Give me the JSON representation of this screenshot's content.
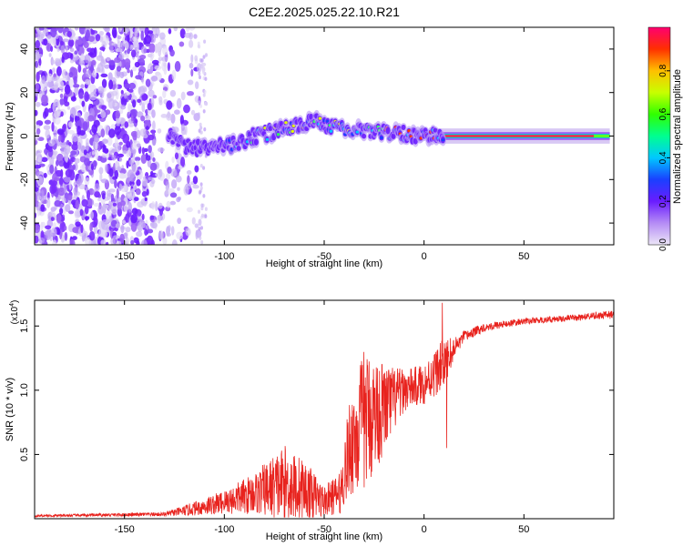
{
  "title": "C2E2.2025.025.22.10.R21",
  "chart_data": [
    {
      "type": "heatmap",
      "xlabel": "Height of straight line (km)",
      "ylabel": "Frequency (Hz)",
      "xlim": [
        -195,
        95
      ],
      "ylim": [
        -50,
        50
      ],
      "xticks": [
        -150,
        -100,
        -50,
        0,
        50
      ],
      "yticks": [
        -40,
        -20,
        0,
        20,
        40
      ],
      "colorbar": {
        "label": "Normalized spectral amplitude",
        "range": [
          0,
          1
        ],
        "ticks": [
          "0.0",
          "0.2",
          "0.4",
          "0.6",
          "0.8"
        ],
        "tick_values": [
          0,
          0.2,
          0.4,
          0.6,
          0.8
        ],
        "colors": [
          "#e6ddf5",
          "#7a2cff",
          "#1a2bff",
          "#00d8ff",
          "#00ff40",
          "#bfff00",
          "#ffd000",
          "#ff3a00",
          "#ff0066"
        ]
      },
      "features": {
        "noise_region_x": [
          -195,
          -112
        ],
        "signal_trace": [
          {
            "x": -125,
            "y": -3
          },
          {
            "x": -110,
            "y": -6
          },
          {
            "x": -95,
            "y": -4
          },
          {
            "x": -85,
            "y": 0
          },
          {
            "x": -70,
            "y": 3
          },
          {
            "x": -55,
            "y": 7
          },
          {
            "x": -45,
            "y": 4
          },
          {
            "x": -35,
            "y": 3
          },
          {
            "x": -20,
            "y": 2
          },
          {
            "x": -10,
            "y": 1
          },
          {
            "x": 0,
            "y": 0
          },
          {
            "x": 10,
            "y": 0
          },
          {
            "x": 50,
            "y": 0
          },
          {
            "x": 93,
            "y": 0
          }
        ]
      }
    },
    {
      "type": "line",
      "xlabel": "Height of straight line (km)",
      "ylabel": "SNR (10 * v/v)",
      "y_multiplier": "(x10",
      "y_multiplier_exp": "4",
      "y_multiplier_close": ")",
      "xlim": [
        -195,
        95
      ],
      "ylim": [
        0,
        1.7
      ],
      "xticks": [
        -150,
        -100,
        -50,
        0,
        50
      ],
      "yticks": [
        0.5,
        1.0,
        1.5
      ],
      "ytick_labels": [
        "0.5",
        "1.0",
        "1.5"
      ],
      "series_color": "#e8231e",
      "envelope": [
        {
          "x": -195,
          "base": 0.02,
          "amp": 0.01
        },
        {
          "x": -130,
          "base": 0.03,
          "amp": 0.02
        },
        {
          "x": -120,
          "base": 0.05,
          "amp": 0.05
        },
        {
          "x": -100,
          "base": 0.1,
          "amp": 0.12
        },
        {
          "x": -85,
          "base": 0.15,
          "amp": 0.2
        },
        {
          "x": -70,
          "base": 0.18,
          "amp": 0.38
        },
        {
          "x": -60,
          "base": 0.15,
          "amp": 0.3
        },
        {
          "x": -50,
          "base": 0.1,
          "amp": 0.15
        },
        {
          "x": -42,
          "base": 0.15,
          "amp": 0.2
        },
        {
          "x": -37,
          "base": 0.45,
          "amp": 0.5
        },
        {
          "x": -30,
          "base": 0.6,
          "amp": 0.7
        },
        {
          "x": -20,
          "base": 0.75,
          "amp": 0.45
        },
        {
          "x": -10,
          "base": 0.95,
          "amp": 0.2
        },
        {
          "x": 0,
          "base": 1.0,
          "amp": 0.2
        },
        {
          "x": 10,
          "base": 1.15,
          "amp": 0.25
        },
        {
          "x": 15,
          "base": 1.3,
          "amp": 0.1
        },
        {
          "x": 20,
          "base": 1.4,
          "amp": 0.06
        },
        {
          "x": 30,
          "base": 1.48,
          "amp": 0.04
        },
        {
          "x": 50,
          "base": 1.53,
          "amp": 0.03
        },
        {
          "x": 70,
          "base": 1.55,
          "amp": 0.03
        },
        {
          "x": 95,
          "base": 1.58,
          "amp": 0.04
        }
      ]
    }
  ]
}
